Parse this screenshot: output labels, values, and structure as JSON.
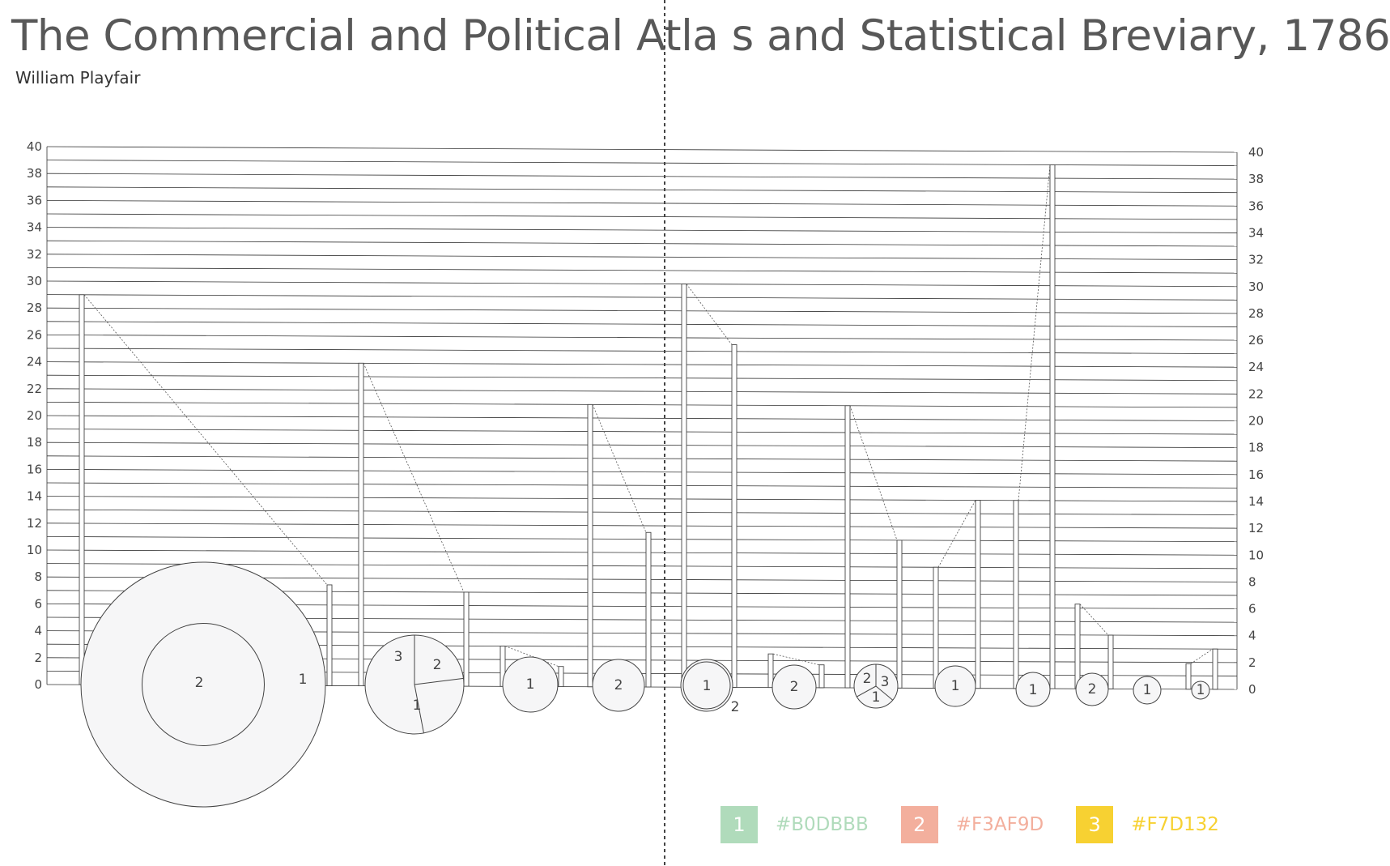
{
  "title": "The Commercial and Political Atla s and Statistical Breviary, 1786",
  "subtitle": "William Playfair",
  "legend": [
    {
      "key": "1",
      "hex": "#B0DBBB",
      "color": "#B0DBBB"
    },
    {
      "key": "2",
      "hex": "#F3AF9D",
      "color": "#F3AF9D"
    },
    {
      "key": "3",
      "hex": "#F7D132",
      "color": "#F7D132"
    }
  ],
  "chart_data": {
    "type": "bar",
    "title": "The Commercial and Political Atla s and Statistical Breviary, 1786",
    "ylim": [
      0,
      40
    ],
    "yticks_left": [
      0,
      2,
      4,
      6,
      8,
      10,
      12,
      14,
      16,
      18,
      20,
      22,
      24,
      26,
      28,
      30,
      32,
      34,
      36,
      38,
      40
    ],
    "yticks_right": [
      0,
      2,
      4,
      6,
      8,
      10,
      12,
      14,
      16,
      18,
      20,
      22,
      24,
      26,
      28,
      30,
      32,
      34,
      36,
      38,
      40
    ],
    "grid": true,
    "series": [
      {
        "values": [
          29,
          24,
          3,
          21,
          30,
          2.5,
          21,
          9,
          14,
          6.3,
          1.9
        ]
      },
      {
        "values": [
          7.5,
          7,
          1.5,
          11.5,
          25.5,
          1.7,
          11,
          14,
          39,
          4,
          3
        ]
      }
    ],
    "pies": [
      {
        "labels": [
          "2",
          "1"
        ],
        "shares": [
          0.25,
          0.75
        ]
      },
      {
        "labels": [
          "3",
          "2",
          "1"
        ],
        "shares": [
          0.23,
          0.24,
          0.53
        ]
      },
      {
        "labels": [
          "1"
        ],
        "shares": [
          1
        ]
      },
      {
        "labels": [
          "2"
        ],
        "shares": [
          1
        ]
      },
      {
        "labels": [
          "1",
          "2"
        ],
        "shares": [
          0.96,
          0.04
        ]
      },
      {
        "labels": [
          "2"
        ],
        "shares": [
          1
        ]
      },
      {
        "labels": [
          "2",
          "3",
          "1"
        ],
        "shares": [
          0.36,
          0.31,
          0.33
        ]
      },
      {
        "labels": [
          "1"
        ],
        "shares": [
          1
        ]
      },
      {
        "labels": [
          "1"
        ],
        "shares": [
          1
        ]
      },
      {
        "labels": [
          "2"
        ],
        "shares": [
          1
        ]
      },
      {
        "labels": [
          "1"
        ],
        "shares": [
          1
        ]
      },
      {
        "labels": [
          "1"
        ],
        "shares": [
          1
        ]
      }
    ]
  }
}
